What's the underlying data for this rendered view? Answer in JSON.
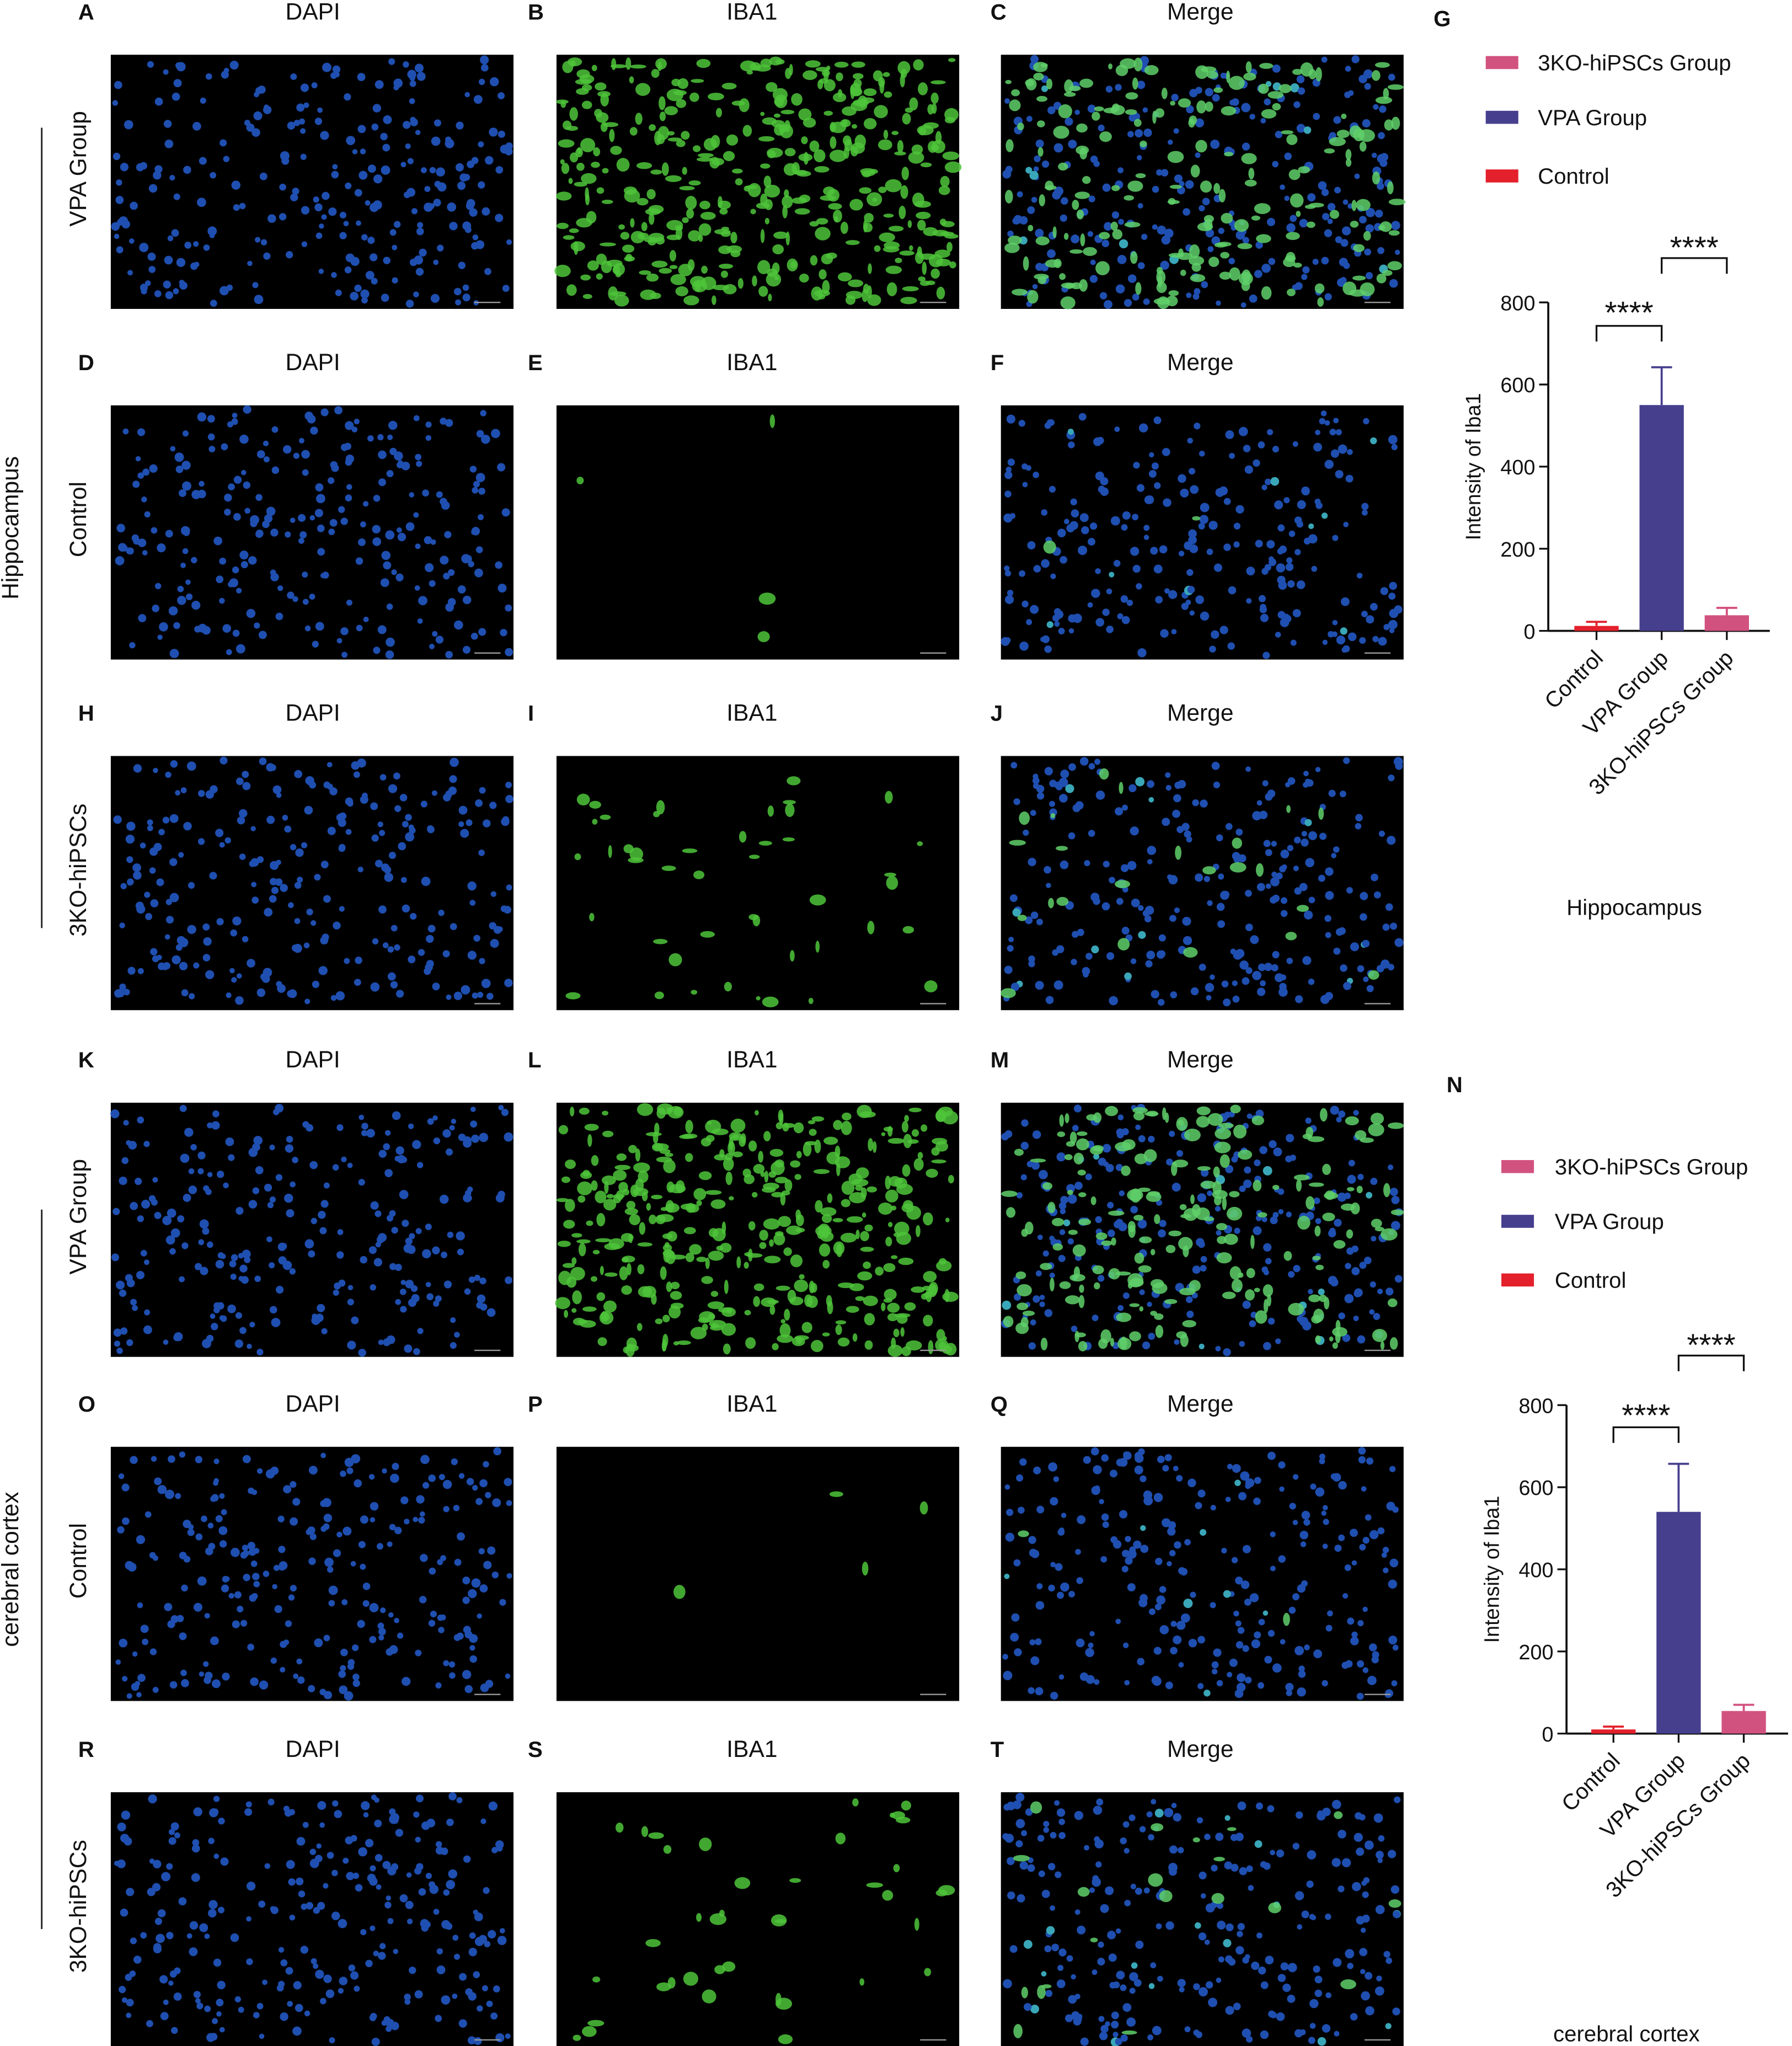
{
  "figure": {
    "sections": [
      {
        "label": "Hippocampus",
        "rows": [
          {
            "label": "VPA Group",
            "panels": [
              {
                "letter": "A",
                "stain": "DAPI"
              },
              {
                "letter": "B",
                "stain": "IBA1"
              },
              {
                "letter": "C",
                "stain": "Merge"
              }
            ]
          },
          {
            "label": "Control",
            "panels": [
              {
                "letter": "D",
                "stain": "DAPI"
              },
              {
                "letter": "E",
                "stain": "IBA1"
              },
              {
                "letter": "F",
                "stain": "Merge"
              }
            ]
          },
          {
            "label": "3KO-hiPSCs",
            "panels": [
              {
                "letter": "H",
                "stain": "DAPI"
              },
              {
                "letter": "I",
                "stain": "IBA1"
              },
              {
                "letter": "J",
                "stain": "Merge"
              }
            ]
          }
        ]
      },
      {
        "label": "cerebral cortex",
        "rows": [
          {
            "label": "VPA Group",
            "panels": [
              {
                "letter": "K",
                "stain": "DAPI"
              },
              {
                "letter": "L",
                "stain": "IBA1"
              },
              {
                "letter": "M",
                "stain": "Merge"
              }
            ]
          },
          {
            "label": "Control",
            "panels": [
              {
                "letter": "O",
                "stain": "DAPI"
              },
              {
                "letter": "P",
                "stain": "IBA1"
              },
              {
                "letter": "Q",
                "stain": "Merge"
              }
            ]
          },
          {
            "label": "3KO-hiPSCs",
            "panels": [
              {
                "letter": "R",
                "stain": "DAPI"
              },
              {
                "letter": "S",
                "stain": "IBA1"
              },
              {
                "letter": "T",
                "stain": "Merge"
              }
            ]
          }
        ]
      }
    ]
  },
  "chart_data": [
    {
      "type": "bar",
      "panel": "G",
      "caption": "Hippocampus",
      "y_label": "Intensity of Iba1",
      "categories": [
        "Control",
        "VPA Group",
        "3KO-hiPSCs Group"
      ],
      "values": [
        12,
        550,
        38
      ],
      "errors": [
        10,
        92,
        18
      ],
      "colors": [
        "#e3202b",
        "#463f8e",
        "#d2527f"
      ],
      "ylim": [
        0,
        800
      ],
      "yticks": [
        0,
        200,
        400,
        600,
        800
      ],
      "annotations": [
        "****",
        "****"
      ]
    },
    {
      "type": "bar",
      "panel": "N",
      "caption": "cerebral cortex",
      "y_label": "Intensity of Iba1",
      "categories": [
        "Control",
        "VPA Group",
        "3KO-hiPSCs Group"
      ],
      "values": [
        10,
        540,
        55
      ],
      "errors": [
        7,
        117,
        15
      ],
      "colors": [
        "#e3202b",
        "#463f8e",
        "#d2527f"
      ],
      "ylim": [
        0,
        800
      ],
      "yticks": [
        0,
        200,
        400,
        600,
        800
      ],
      "annotations": [
        "****",
        "****"
      ]
    }
  ]
}
